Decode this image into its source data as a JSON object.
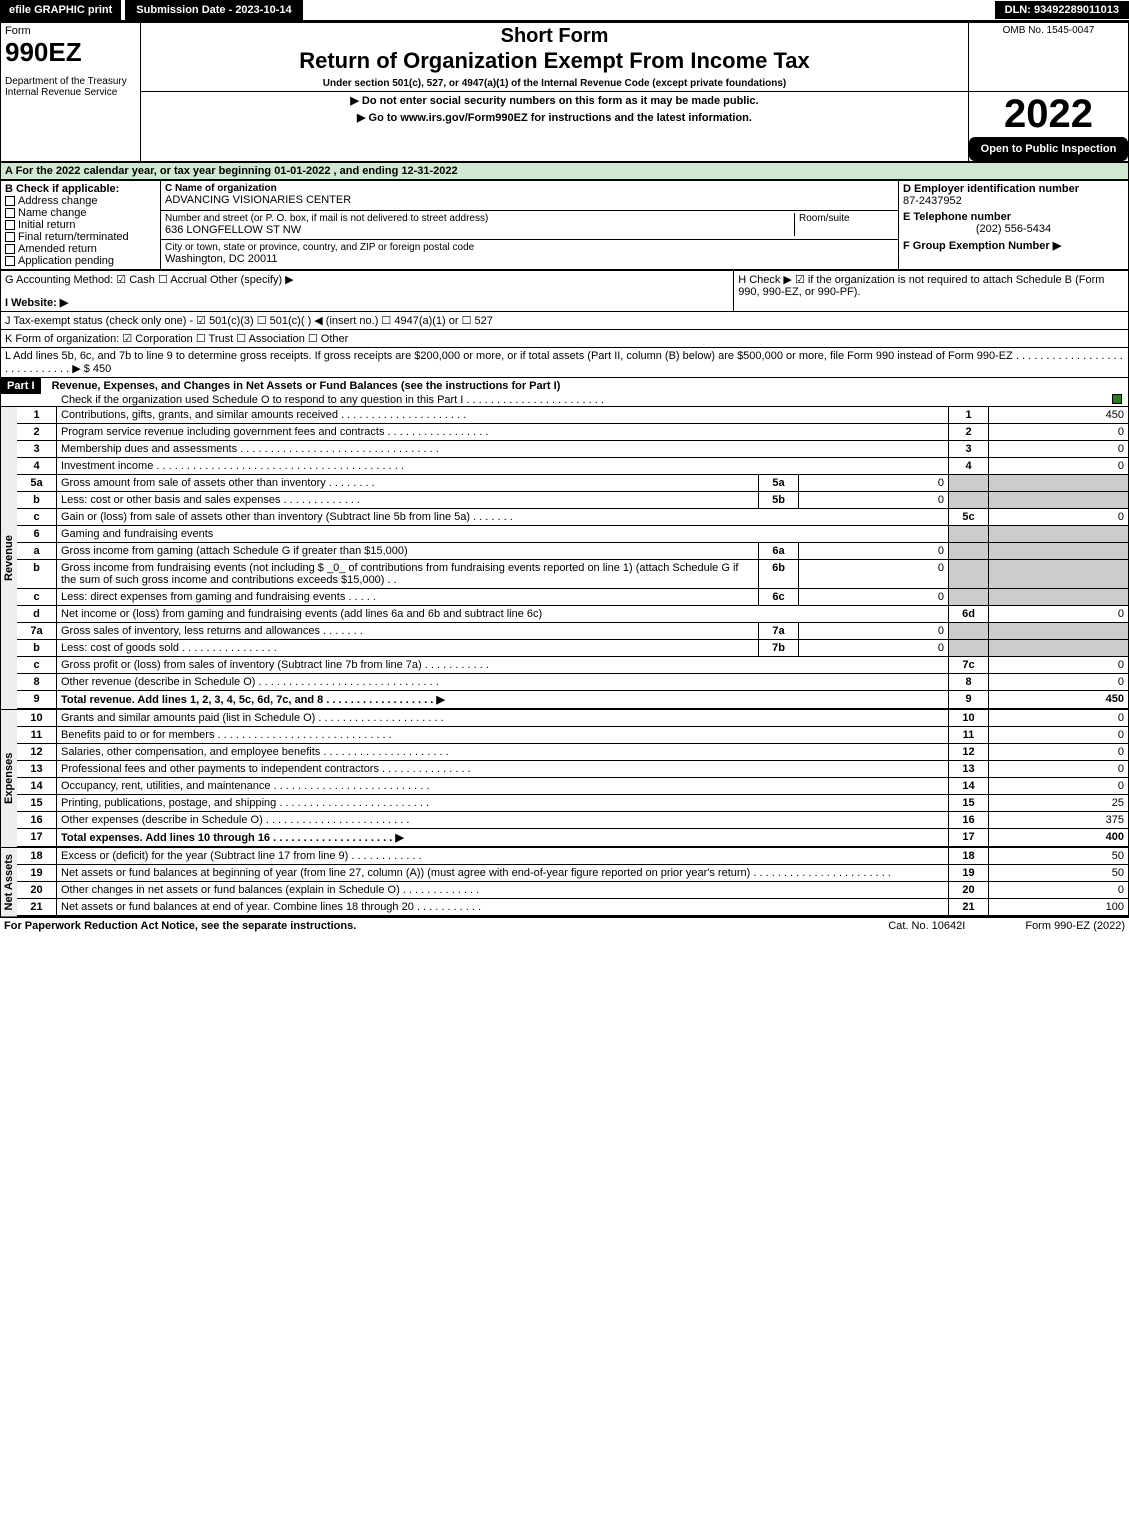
{
  "topbar": {
    "efile": "efile GRAPHIC print",
    "subdate_label": "Submission Date - 2023-10-14",
    "dln": "DLN: 93492289011013"
  },
  "header": {
    "form_word": "Form",
    "form_no": "990EZ",
    "dept": "Department of the Treasury",
    "irs": "Internal Revenue Service",
    "short_form": "Short Form",
    "title": "Return of Organization Exempt From Income Tax",
    "subtitle": "Under section 501(c), 527, or 4947(a)(1) of the Internal Revenue Code (except private foundations)",
    "warn": "▶ Do not enter social security numbers on this form as it may be made public.",
    "goto": "▶ Go to www.irs.gov/Form990EZ for instructions and the latest information.",
    "omb": "OMB No. 1545-0047",
    "year": "2022",
    "open": "Open to Public Inspection"
  },
  "sectionA": "A  For the 2022 calendar year, or tax year beginning 01-01-2022 , and ending 12-31-2022",
  "boxB": {
    "title": "B  Check if applicable:",
    "opts": [
      "Address change",
      "Name change",
      "Initial return",
      "Final return/terminated",
      "Amended return",
      "Application pending"
    ]
  },
  "boxC": {
    "name_label": "C Name of organization",
    "name": "ADVANCING VISIONARIES CENTER",
    "street_label": "Number and street (or P. O. box, if mail is not delivered to street address)",
    "street": "636 LONGFELLOW ST NW",
    "room_label": "Room/suite",
    "city_label": "City or town, state or province, country, and ZIP or foreign postal code",
    "city": "Washington, DC  20011"
  },
  "boxD": {
    "label": "D Employer identification number",
    "value": "87-2437952"
  },
  "boxE": {
    "label": "E Telephone number",
    "value": "(202) 556-5434"
  },
  "boxF": {
    "label": "F Group Exemption Number  ▶"
  },
  "lineG": "G Accounting Method:   ☑ Cash  ☐ Accrual   Other (specify) ▶",
  "lineH": "H   Check ▶ ☑ if the organization is not required to attach Schedule B (Form 990, 990-EZ, or 990-PF).",
  "lineI": "I Website: ▶",
  "lineJ": "J Tax-exempt status (check only one) - ☑ 501(c)(3) ☐ 501(c)( ) ◀ (insert no.) ☐ 4947(a)(1) or ☐ 527",
  "lineK": "K Form of organization:  ☑ Corporation  ☐ Trust  ☐ Association  ☐ Other",
  "lineL": "L Add lines 5b, 6c, and 7b to line 9 to determine gross receipts. If gross receipts are $200,000 or more, or if total assets (Part II, column (B) below) are $500,000 or more, file Form 990 instead of Form 990-EZ . . . . . . . . . . . . . . . . . . . . . . . . . . . . . ▶ $ 450",
  "part1": {
    "label": "Part I",
    "title": "Revenue, Expenses, and Changes in Net Assets or Fund Balances (see the instructions for Part I)",
    "check": "Check if the organization used Schedule O to respond to any question in this Part I . . . . . . . . . . . . . . . . . . . . . . .",
    "checked": "☑"
  },
  "sections": {
    "revenue_label": "Revenue",
    "expenses_label": "Expenses",
    "netassets_label": "Net Assets"
  },
  "lines": [
    {
      "n": "1",
      "desc": "Contributions, gifts, grants, and similar amounts received . . . . . . . . . . . . . . . . . . . . .",
      "col": "1",
      "val": "450"
    },
    {
      "n": "2",
      "desc": "Program service revenue including government fees and contracts . . . . . . . . . . . . . . . . .",
      "col": "2",
      "val": "0"
    },
    {
      "n": "3",
      "desc": "Membership dues and assessments . . . . . . . . . . . . . . . . . . . . . . . . . . . . . . . . .",
      "col": "3",
      "val": "0"
    },
    {
      "n": "4",
      "desc": "Investment income . . . . . . . . . . . . . . . . . . . . . . . . . . . . . . . . . . . . . . . . .",
      "col": "4",
      "val": "0"
    },
    {
      "n": "5a",
      "desc": "Gross amount from sale of assets other than inventory . . . . . . . .",
      "sub": "5a",
      "subval": "0",
      "grey": true
    },
    {
      "n": "b",
      "desc": "Less: cost or other basis and sales expenses . . . . . . . . . . . . .",
      "sub": "5b",
      "subval": "0",
      "grey": true
    },
    {
      "n": "c",
      "desc": "Gain or (loss) from sale of assets other than inventory (Subtract line 5b from line 5a) . . . . . . .",
      "col": "5c",
      "val": "0"
    },
    {
      "n": "6",
      "desc": "Gaming and fundraising events",
      "grey": true
    },
    {
      "n": "a",
      "desc": "Gross income from gaming (attach Schedule G if greater than $15,000)",
      "sub": "6a",
      "subval": "0",
      "grey": true
    },
    {
      "n": "b",
      "desc": "Gross income from fundraising events (not including $ _0_ of contributions from fundraising events reported on line 1) (attach Schedule G if the sum of such gross income and contributions exceeds $15,000)   . .",
      "sub": "6b",
      "subval": "0",
      "grey": true
    },
    {
      "n": "c",
      "desc": "Less: direct expenses from gaming and fundraising events   . . . . .",
      "sub": "6c",
      "subval": "0",
      "grey": true
    },
    {
      "n": "d",
      "desc": "Net income or (loss) from gaming and fundraising events (add lines 6a and 6b and subtract line 6c)",
      "col": "6d",
      "val": "0"
    },
    {
      "n": "7a",
      "desc": "Gross sales of inventory, less returns and allowances . . . . . . .",
      "sub": "7a",
      "subval": "0",
      "grey": true
    },
    {
      "n": "b",
      "desc": "Less: cost of goods sold     . . . . . . . . . . . . . . . .",
      "sub": "7b",
      "subval": "0",
      "grey": true
    },
    {
      "n": "c",
      "desc": "Gross profit or (loss) from sales of inventory (Subtract line 7b from line 7a) . . . . . . . . . . .",
      "col": "7c",
      "val": "0"
    },
    {
      "n": "8",
      "desc": "Other revenue (describe in Schedule O) . . . . . . . . . . . . . . . . . . . . . . . . . . . . . .",
      "col": "8",
      "val": "0"
    },
    {
      "n": "9",
      "desc": "Total revenue. Add lines 1, 2, 3, 4, 5c, 6d, 7c, and 8  . . . . . . . . . . . . . . . . . .   ▶",
      "col": "9",
      "val": "450",
      "bold": true
    }
  ],
  "exp_lines": [
    {
      "n": "10",
      "desc": "Grants and similar amounts paid (list in Schedule O) . . . . . . . . . . . . . . . . . . . . .",
      "col": "10",
      "val": "0"
    },
    {
      "n": "11",
      "desc": "Benefits paid to or for members     . . . . . . . . . . . . . . . . . . . . . . . . . . . . .",
      "col": "11",
      "val": "0"
    },
    {
      "n": "12",
      "desc": "Salaries, other compensation, and employee benefits . . . . . . . . . . . . . . . . . . . . .",
      "col": "12",
      "val": "0"
    },
    {
      "n": "13",
      "desc": "Professional fees and other payments to independent contractors . . . . . . . . . . . . . . .",
      "col": "13",
      "val": "0"
    },
    {
      "n": "14",
      "desc": "Occupancy, rent, utilities, and maintenance . . . . . . . . . . . . . . . . . . . . . . . . . .",
      "col": "14",
      "val": "0"
    },
    {
      "n": "15",
      "desc": "Printing, publications, postage, and shipping . . . . . . . . . . . . . . . . . . . . . . . . .",
      "col": "15",
      "val": "25"
    },
    {
      "n": "16",
      "desc": "Other expenses (describe in Schedule O)     . . . . . . . . . . . . . . . . . . . . . . . .",
      "col": "16",
      "val": "375"
    },
    {
      "n": "17",
      "desc": "Total expenses. Add lines 10 through 16     . . . . . . . . . . . . . . . . . . . .   ▶",
      "col": "17",
      "val": "400",
      "bold": true
    }
  ],
  "na_lines": [
    {
      "n": "18",
      "desc": "Excess or (deficit) for the year (Subtract line 17 from line 9)      . . . . . . . . . . . .",
      "col": "18",
      "val": "50"
    },
    {
      "n": "19",
      "desc": "Net assets or fund balances at beginning of year (from line 27, column (A)) (must agree with end-of-year figure reported on prior year's return) . . . . . . . . . . . . . . . . . . . . . . .",
      "col": "19",
      "val": "50"
    },
    {
      "n": "20",
      "desc": "Other changes in net assets or fund balances (explain in Schedule O) . . . . . . . . . . . . .",
      "col": "20",
      "val": "0"
    },
    {
      "n": "21",
      "desc": "Net assets or fund balances at end of year. Combine lines 18 through 20 . . . . . . . . . . .",
      "col": "21",
      "val": "100"
    }
  ],
  "footer": {
    "left": "For Paperwork Reduction Act Notice, see the separate instructions.",
    "mid": "Cat. No. 10642I",
    "right": "Form 990-EZ (2022)"
  }
}
